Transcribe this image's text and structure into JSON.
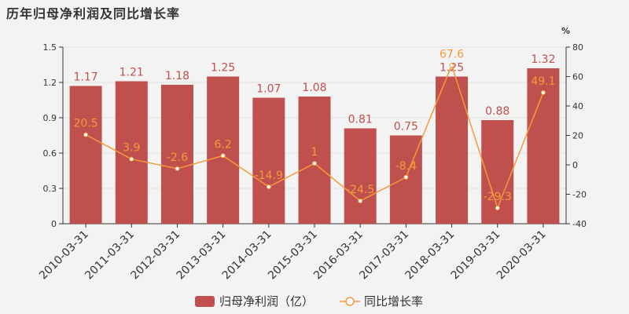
{
  "chart_data": {
    "title": "历年归母净利润及同比增长率",
    "type": "bar",
    "categories": [
      "2010-03-31",
      "2011-03-31",
      "2012-03-31",
      "2013-03-31",
      "2014-03-31",
      "2015-03-31",
      "2016-03-31",
      "2017-03-31",
      "2018-03-31",
      "2019-03-31",
      "2020-03-31"
    ],
    "series": [
      {
        "name": "归母净利润（亿）",
        "type": "bar",
        "axis": "left",
        "values": [
          1.17,
          1.21,
          1.18,
          1.25,
          1.07,
          1.08,
          0.81,
          0.75,
          1.25,
          0.88,
          1.32
        ],
        "labels": [
          "1.17",
          "1.21",
          "1.18",
          "1.25",
          "1.07",
          "1.08",
          "0.81",
          "0.75",
          "1.25",
          "0.88",
          "1.32"
        ]
      },
      {
        "name": "同比增长率",
        "type": "line",
        "axis": "right",
        "values": [
          20.5,
          3.9,
          -2.6,
          6.2,
          -14.9,
          1,
          -24.5,
          -8.4,
          67.6,
          -29.3,
          49.1
        ],
        "labels": [
          "20.5",
          "3.9",
          "-2.6",
          "6.2",
          "-14.9",
          "1",
          "-24.5",
          "-8.4",
          "67.6",
          "-29.3",
          "49.1"
        ]
      }
    ],
    "y_left": {
      "range": [
        0,
        1.5
      ],
      "ticks": [
        "0",
        "0.3",
        "0.6",
        "0.9",
        "1.2",
        "1.5"
      ]
    },
    "y_right": {
      "unit": "%",
      "range": [
        -40,
        80
      ],
      "ticks": [
        "-40",
        "-20",
        "0",
        "20",
        "40",
        "60",
        "80"
      ]
    },
    "legend_position": "bottom-center",
    "colors": {
      "bar": "#c0504d",
      "line": "#f59a3b"
    }
  }
}
